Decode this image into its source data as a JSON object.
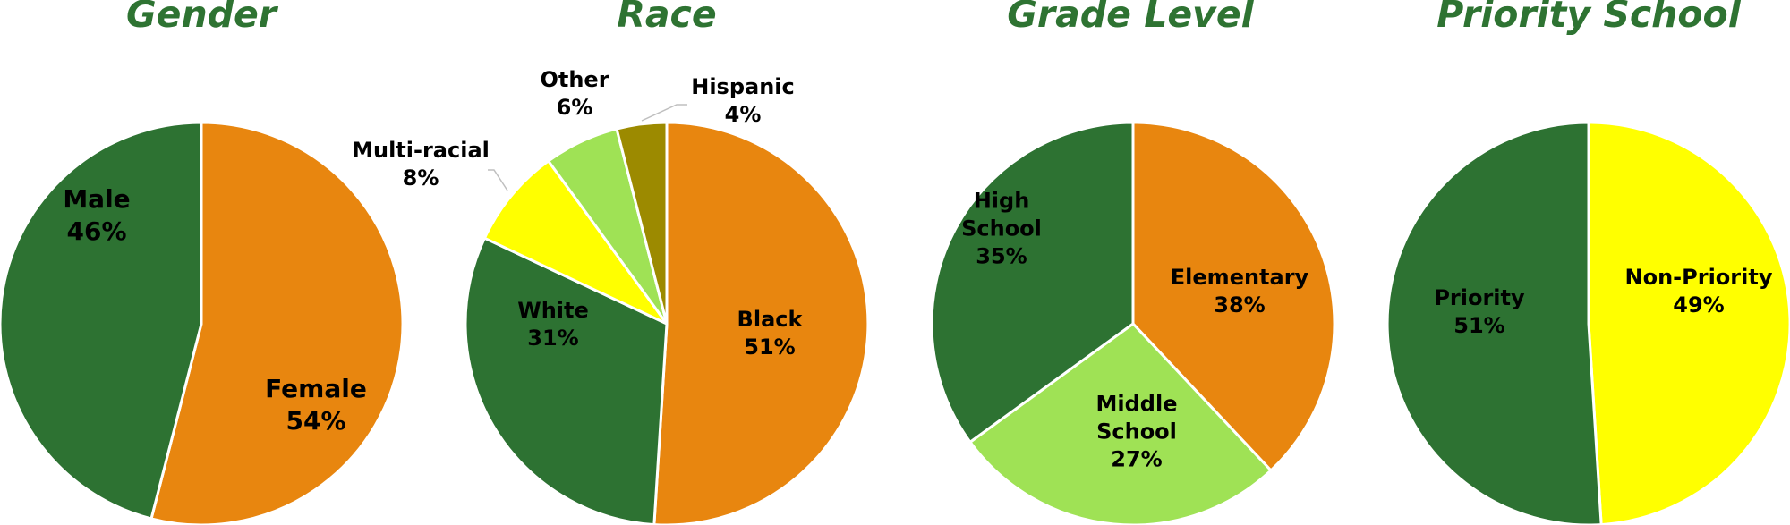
{
  "chart_data": [
    {
      "type": "pie",
      "title": "Gender",
      "slices": [
        {
          "label": [
            "Female",
            "54%"
          ],
          "value": 54,
          "color": "#e8860f"
        },
        {
          "label": [
            "Male",
            "46%"
          ],
          "value": 46,
          "color": "#2d7232"
        }
      ]
    },
    {
      "type": "pie",
      "title": "Race",
      "slices": [
        {
          "label": [
            "Black",
            "51%"
          ],
          "value": 51,
          "color": "#e8860f"
        },
        {
          "label": [
            "White",
            "31%"
          ],
          "value": 31,
          "color": "#2d7232"
        },
        {
          "label": [
            "Multi-racial",
            "8%"
          ],
          "value": 8,
          "color": "#ffff00"
        },
        {
          "label": [
            "Other",
            "6%"
          ],
          "value": 6,
          "color": "#9fe255"
        },
        {
          "label": [
            "Hispanic",
            "4%"
          ],
          "value": 4,
          "color": "#9c8a00"
        }
      ]
    },
    {
      "type": "pie",
      "title": "Grade Level",
      "slices": [
        {
          "label": [
            "Elementary",
            "38%"
          ],
          "value": 38,
          "color": "#e8860f"
        },
        {
          "label": [
            "Middle",
            "School",
            "27%"
          ],
          "value": 27,
          "color": "#9fe255"
        },
        {
          "label": [
            "High",
            "School",
            "35%"
          ],
          "value": 35,
          "color": "#2d7232"
        }
      ]
    },
    {
      "type": "pie",
      "title": "Priority School",
      "slices": [
        {
          "label": [
            "Non-Priority",
            "49%"
          ],
          "value": 49,
          "color": "#ffff00"
        },
        {
          "label": [
            "Priority",
            "51%"
          ],
          "value": 51,
          "color": "#2d7232"
        }
      ]
    }
  ]
}
